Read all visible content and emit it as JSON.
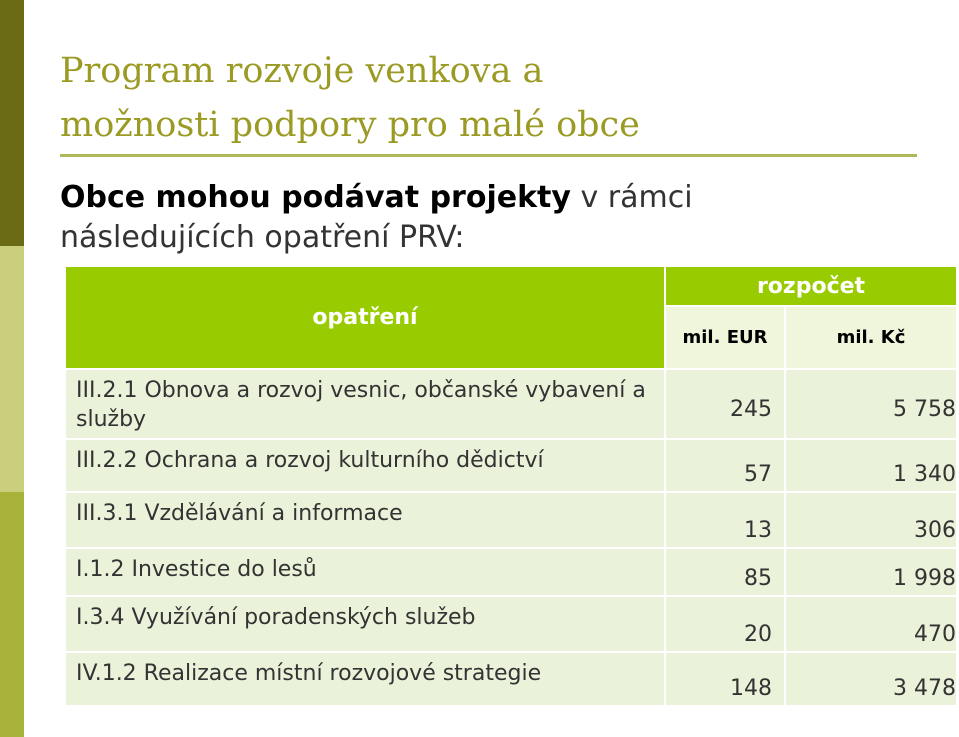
{
  "title_line1": "Program rozvoje venkova a",
  "title_line2": "možnosti podpory pro malé obce",
  "subtitle": {
    "strong": "Obce mohou podávat projekty",
    "rest_line1": " v rámci",
    "line2": "následujících  opatření  PRV:"
  },
  "table": {
    "header_measure": "opatření",
    "header_budget": "rozpočet",
    "unit_eur": "mil. EUR",
    "unit_czk": "mil. Kč",
    "rows": [
      {
        "label": "III.2.1 Obnova a rozvoj vesnic, občanské vybavení a služby",
        "eur": "245",
        "czk": "5 758"
      },
      {
        "label": "III.2.2 Ochrana a rozvoj kulturního dědictví",
        "eur": "57",
        "czk": "1 340"
      },
      {
        "label": "III.3.1 Vzdělávání a informace",
        "eur": "13",
        "czk": "306"
      },
      {
        "label": "I.1.2 Investice do lesů",
        "eur": "85",
        "czk": "1 998"
      },
      {
        "label": "I.3.4 Využívání poradenských služeb",
        "eur": "20",
        "czk": "470"
      },
      {
        "label": "IV.1.2 Realizace místní rozvojové strategie",
        "eur": "148",
        "czk": "3 478"
      }
    ]
  }
}
